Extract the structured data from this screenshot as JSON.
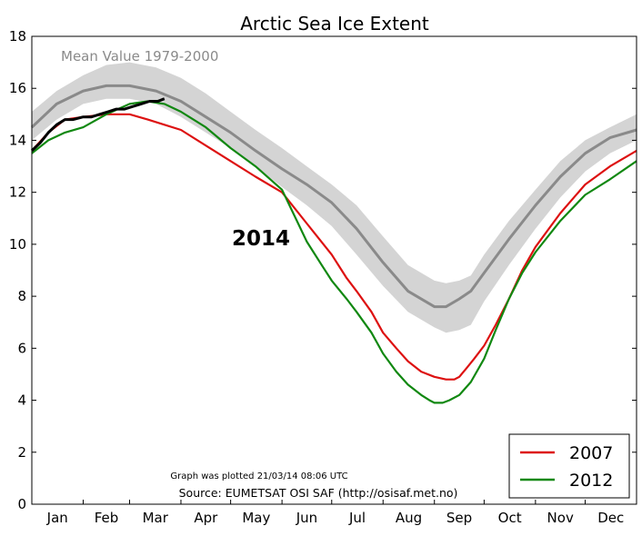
{
  "chart_data": {
    "type": "line",
    "title": "Arctic Sea Ice Extent",
    "xlabel": "",
    "ylabel": "",
    "x_tick_labels": [
      "Jan",
      "Feb",
      "Mar",
      "Apr",
      "May",
      "Jun",
      "Jul",
      "Aug",
      "Sep",
      "Oct",
      "Nov",
      "Dec"
    ],
    "x_unit": "day of year",
    "xlim": [
      0,
      365
    ],
    "ylim": [
      0,
      18
    ],
    "y_ticks": [
      0,
      2,
      4,
      6,
      8,
      10,
      12,
      14,
      16,
      18
    ],
    "grid": false,
    "legend_position": "bottom-right",
    "annotations": {
      "mean_label": "Mean Value 1979-2000",
      "year_label": "2014",
      "plotted_note": "Graph was plotted 21/03/14 08:06 UTC",
      "source_note": "Source: EUMETSAT OSI SAF (http://osisaf.met.no)"
    },
    "colors": {
      "mean": "#8a8a8a",
      "mean_band": "#d4d4d4",
      "s2007": "#dd1111",
      "s2012": "#118811",
      "s2014": "#000000"
    },
    "mean_band": {
      "x": [
        0,
        15,
        31,
        45,
        59,
        75,
        90,
        105,
        120,
        135,
        151,
        166,
        181,
        196,
        212,
        227,
        243,
        250,
        258,
        265,
        273,
        288,
        304,
        319,
        334,
        349,
        365
      ],
      "lower": [
        14.0,
        14.8,
        15.4,
        15.6,
        15.6,
        15.4,
        14.9,
        14.3,
        13.7,
        13.0,
        12.2,
        11.5,
        10.7,
        9.6,
        8.4,
        7.4,
        6.8,
        6.6,
        6.7,
        6.9,
        7.8,
        9.2,
        10.6,
        11.8,
        12.8,
        13.5,
        14.0
      ],
      "upper": [
        15.1,
        15.9,
        16.5,
        16.9,
        17.0,
        16.8,
        16.4,
        15.8,
        15.1,
        14.4,
        13.7,
        13.0,
        12.3,
        11.5,
        10.3,
        9.2,
        8.6,
        8.5,
        8.6,
        8.8,
        9.6,
        10.9,
        12.1,
        13.2,
        14.0,
        14.5,
        15.0
      ]
    },
    "series": [
      {
        "name": "",
        "key": "mean",
        "x": [
          0,
          15,
          31,
          45,
          59,
          75,
          90,
          105,
          120,
          135,
          151,
          166,
          181,
          196,
          212,
          227,
          243,
          250,
          258,
          265,
          273,
          288,
          304,
          319,
          334,
          349,
          365
        ],
        "values": [
          14.5,
          15.4,
          15.9,
          16.1,
          16.1,
          15.9,
          15.5,
          14.9,
          14.3,
          13.6,
          12.9,
          12.3,
          11.6,
          10.6,
          9.3,
          8.2,
          7.6,
          7.6,
          7.9,
          8.2,
          8.9,
          10.2,
          11.5,
          12.6,
          13.5,
          14.1,
          14.4
        ]
      },
      {
        "name": "2007",
        "key": "s2007",
        "x": [
          0,
          10,
          20,
          31,
          45,
          59,
          70,
          80,
          90,
          105,
          120,
          135,
          151,
          166,
          181,
          190,
          196,
          205,
          212,
          220,
          227,
          235,
          243,
          250,
          255,
          258,
          262,
          267,
          273,
          280,
          288,
          296,
          304,
          319,
          334,
          349,
          365
        ],
        "values": [
          13.6,
          14.3,
          14.8,
          14.9,
          15.0,
          15.0,
          14.8,
          14.6,
          14.4,
          13.8,
          13.2,
          12.6,
          12.0,
          10.8,
          9.6,
          8.7,
          8.2,
          7.4,
          6.6,
          6.0,
          5.5,
          5.1,
          4.9,
          4.8,
          4.8,
          4.9,
          5.2,
          5.6,
          6.1,
          6.9,
          7.9,
          9.0,
          9.9,
          11.2,
          12.3,
          13.0,
          13.6
        ]
      },
      {
        "name": "2012",
        "key": "s2012",
        "x": [
          0,
          10,
          20,
          31,
          45,
          59,
          70,
          80,
          90,
          105,
          120,
          135,
          151,
          160,
          166,
          175,
          181,
          190,
          196,
          205,
          212,
          220,
          227,
          235,
          240,
          243,
          248,
          252,
          258,
          265,
          273,
          280,
          288,
          296,
          304,
          319,
          334,
          349,
          365
        ],
        "values": [
          13.5,
          14.0,
          14.3,
          14.5,
          15.0,
          15.4,
          15.5,
          15.4,
          15.1,
          14.5,
          13.7,
          13.0,
          12.1,
          10.9,
          10.1,
          9.2,
          8.6,
          7.9,
          7.4,
          6.6,
          5.8,
          5.1,
          4.6,
          4.2,
          4.0,
          3.9,
          3.9,
          4.0,
          4.2,
          4.7,
          5.6,
          6.7,
          7.9,
          8.9,
          9.7,
          10.9,
          11.9,
          12.5,
          13.2
        ]
      },
      {
        "name": "",
        "key": "s2014",
        "label": "2014",
        "x": [
          0,
          5,
          10,
          15,
          20,
          25,
          31,
          36,
          41,
          46,
          51,
          56,
          61,
          66,
          71,
          76,
          80
        ],
        "values": [
          13.6,
          13.9,
          14.3,
          14.6,
          14.8,
          14.8,
          14.9,
          14.9,
          15.0,
          15.1,
          15.2,
          15.2,
          15.3,
          15.4,
          15.5,
          15.5,
          15.6
        ]
      }
    ]
  }
}
